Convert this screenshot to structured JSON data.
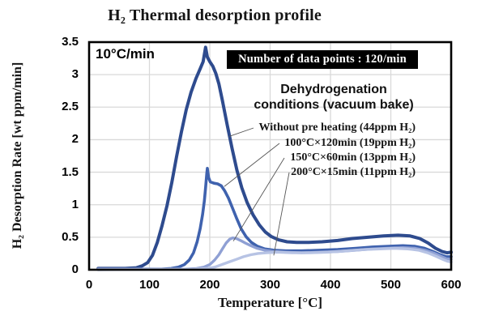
{
  "chart": {
    "title": "H₂ Thermal desorption profile",
    "heating_rate_note": "10°C/min",
    "badge_text": "Number of data points : 120/min",
    "legend_title_line1": "Dehydrogenation",
    "legend_title_line2": "conditions (vacuum bake)",
    "x_axis_label": "Temperature [°C]",
    "y_axis_label": "H₂ Desorption Rate [wt ppm/min]"
  },
  "chart_data": {
    "type": "line",
    "title": "H₂ Thermal desorption profile",
    "xlabel": "Temperature [°C]",
    "ylabel": "H₂ Desorption Rate [wt ppm/min]",
    "xlim": [
      0,
      600
    ],
    "ylim": [
      0,
      3.5
    ],
    "x_ticks": [
      0,
      100,
      200,
      300,
      400,
      500,
      600
    ],
    "y_ticks": [
      0,
      0.5,
      1,
      1.5,
      2,
      2.5,
      3,
      3.5
    ],
    "grid": true,
    "grid_color": "#d9d9d9",
    "border_color": "#000000",
    "annotations": {
      "heating_rate": "10°C/min",
      "data_points": "Number of data points : 120/min",
      "legend_title": "Dehydrogenation conditions (vacuum bake)"
    },
    "series": [
      {
        "name": "Without pre heating (44ppm H₂)",
        "color": "#2e4b8e",
        "stroke_width": 4,
        "peak": {
          "temperature": 193,
          "value": 3.42
        },
        "pointer": [
          232,
          2.05
        ],
        "points": [
          [
            15,
            0.02
          ],
          [
            60,
            0.02
          ],
          [
            78,
            0.03
          ],
          [
            88,
            0.06
          ],
          [
            97,
            0.11
          ],
          [
            105,
            0.22
          ],
          [
            113,
            0.42
          ],
          [
            121,
            0.68
          ],
          [
            129,
            0.98
          ],
          [
            137,
            1.34
          ],
          [
            145,
            1.74
          ],
          [
            153,
            2.12
          ],
          [
            161,
            2.46
          ],
          [
            169,
            2.73
          ],
          [
            177,
            2.94
          ],
          [
            184,
            3.09
          ],
          [
            189,
            3.2
          ],
          [
            193,
            3.42
          ],
          [
            196,
            3.27
          ],
          [
            200,
            3.2
          ],
          [
            205,
            3.13
          ],
          [
            210,
            3.02
          ],
          [
            215,
            2.86
          ],
          [
            221,
            2.6
          ],
          [
            229,
            2.22
          ],
          [
            237,
            1.86
          ],
          [
            245,
            1.53
          ],
          [
            253,
            1.26
          ],
          [
            262,
            1.03
          ],
          [
            272,
            0.84
          ],
          [
            282,
            0.69
          ],
          [
            292,
            0.58
          ],
          [
            302,
            0.51
          ],
          [
            314,
            0.46
          ],
          [
            328,
            0.43
          ],
          [
            344,
            0.42
          ],
          [
            362,
            0.42
          ],
          [
            386,
            0.43
          ],
          [
            412,
            0.45
          ],
          [
            436,
            0.48
          ],
          [
            462,
            0.5
          ],
          [
            488,
            0.52
          ],
          [
            512,
            0.53
          ],
          [
            532,
            0.52
          ],
          [
            548,
            0.48
          ],
          [
            562,
            0.41
          ],
          [
            574,
            0.33
          ],
          [
            585,
            0.28
          ],
          [
            593,
            0.26
          ],
          [
            600,
            0.27
          ]
        ]
      },
      {
        "name": "100°C×120min (19ppm H₂)",
        "color": "#3f62ae",
        "stroke_width": 3.6,
        "peak": {
          "temperature": 196,
          "value": 1.56
        },
        "pointer": [
          224,
          1.28
        ],
        "points": [
          [
            15,
            0.01
          ],
          [
            120,
            0.01
          ],
          [
            136,
            0.02
          ],
          [
            148,
            0.04
          ],
          [
            158,
            0.08
          ],
          [
            166,
            0.15
          ],
          [
            173,
            0.26
          ],
          [
            179,
            0.43
          ],
          [
            184,
            0.63
          ],
          [
            188,
            0.85
          ],
          [
            191,
            1.06
          ],
          [
            193,
            1.26
          ],
          [
            195,
            1.48
          ],
          [
            196,
            1.56
          ],
          [
            198,
            1.42
          ],
          [
            201,
            1.35
          ],
          [
            207,
            1.33
          ],
          [
            213,
            1.32
          ],
          [
            219,
            1.29
          ],
          [
            225,
            1.21
          ],
          [
            231,
            1.1
          ],
          [
            238,
            0.94
          ],
          [
            245,
            0.78
          ],
          [
            252,
            0.63
          ],
          [
            260,
            0.51
          ],
          [
            269,
            0.42
          ],
          [
            279,
            0.36
          ],
          [
            291,
            0.32
          ],
          [
            306,
            0.3
          ],
          [
            326,
            0.29
          ],
          [
            352,
            0.29
          ],
          [
            382,
            0.3
          ],
          [
            412,
            0.31
          ],
          [
            442,
            0.33
          ],
          [
            470,
            0.35
          ],
          [
            496,
            0.36
          ],
          [
            520,
            0.37
          ],
          [
            540,
            0.36
          ],
          [
            556,
            0.33
          ],
          [
            570,
            0.28
          ],
          [
            582,
            0.23
          ],
          [
            592,
            0.2
          ],
          [
            600,
            0.2
          ]
        ]
      },
      {
        "name": "150°C×60min (13ppm H₂)",
        "color": "#8fa0d4",
        "stroke_width": 3.4,
        "peak": {
          "temperature": 238,
          "value": 0.49
        },
        "pointer": [
          239,
          0.44
        ],
        "points": [
          [
            15,
            0.01
          ],
          [
            160,
            0.01
          ],
          [
            178,
            0.02
          ],
          [
            190,
            0.04
          ],
          [
            200,
            0.08
          ],
          [
            208,
            0.15
          ],
          [
            215,
            0.23
          ],
          [
            221,
            0.32
          ],
          [
            227,
            0.41
          ],
          [
            233,
            0.47
          ],
          [
            238,
            0.49
          ],
          [
            244,
            0.48
          ],
          [
            251,
            0.45
          ],
          [
            259,
            0.41
          ],
          [
            268,
            0.37
          ],
          [
            278,
            0.33
          ],
          [
            291,
            0.3
          ],
          [
            306,
            0.28
          ],
          [
            326,
            0.27
          ],
          [
            352,
            0.26
          ],
          [
            382,
            0.27
          ],
          [
            412,
            0.28
          ],
          [
            442,
            0.3
          ],
          [
            470,
            0.32
          ],
          [
            496,
            0.33
          ],
          [
            520,
            0.34
          ],
          [
            540,
            0.33
          ],
          [
            556,
            0.3
          ],
          [
            570,
            0.26
          ],
          [
            582,
            0.21
          ],
          [
            592,
            0.17
          ],
          [
            600,
            0.16
          ]
        ]
      },
      {
        "name": "200°C×15min (11ppm H₂)",
        "color": "#b7c3e4",
        "stroke_width": 3.4,
        "peak": {
          "temperature": 312,
          "value": 0.27
        },
        "pointer": [
          306,
          0.22
        ],
        "points": [
          [
            15,
            0.0
          ],
          [
            175,
            0.01
          ],
          [
            196,
            0.02
          ],
          [
            208,
            0.04
          ],
          [
            220,
            0.08
          ],
          [
            232,
            0.12
          ],
          [
            244,
            0.16
          ],
          [
            256,
            0.2
          ],
          [
            268,
            0.23
          ],
          [
            280,
            0.25
          ],
          [
            294,
            0.26
          ],
          [
            312,
            0.27
          ],
          [
            336,
            0.26
          ],
          [
            366,
            0.26
          ],
          [
            396,
            0.27
          ],
          [
            426,
            0.29
          ],
          [
            456,
            0.31
          ],
          [
            482,
            0.32
          ],
          [
            506,
            0.33
          ],
          [
            528,
            0.32
          ],
          [
            546,
            0.3
          ],
          [
            561,
            0.26
          ],
          [
            574,
            0.21
          ],
          [
            586,
            0.16
          ],
          [
            594,
            0.13
          ],
          [
            600,
            0.12
          ]
        ]
      }
    ]
  }
}
